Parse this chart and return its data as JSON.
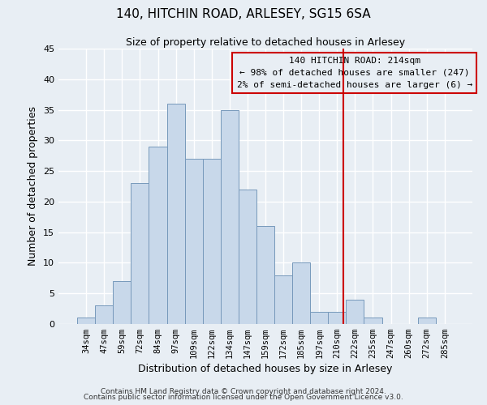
{
  "title": "140, HITCHIN ROAD, ARLESEY, SG15 6SA",
  "subtitle": "Size of property relative to detached houses in Arlesey",
  "xlabel": "Distribution of detached houses by size in Arlesey",
  "ylabel": "Number of detached properties",
  "bar_labels": [
    "34sqm",
    "47sqm",
    "59sqm",
    "72sqm",
    "84sqm",
    "97sqm",
    "109sqm",
    "122sqm",
    "134sqm",
    "147sqm",
    "159sqm",
    "172sqm",
    "185sqm",
    "197sqm",
    "210sqm",
    "222sqm",
    "235sqm",
    "247sqm",
    "260sqm",
    "272sqm",
    "285sqm"
  ],
  "bar_values": [
    1,
    3,
    7,
    23,
    29,
    36,
    27,
    27,
    35,
    22,
    16,
    8,
    10,
    2,
    2,
    4,
    1,
    0,
    0,
    1,
    0
  ],
  "bar_color": "#c8d8ea",
  "bar_edgecolor": "#7799bb",
  "ylim": [
    0,
    45
  ],
  "yticks": [
    0,
    5,
    10,
    15,
    20,
    25,
    30,
    35,
    40,
    45
  ],
  "vline_color": "#cc0000",
  "annotation_title": "140 HITCHIN ROAD: 214sqm",
  "annotation_line1": "← 98% of detached houses are smaller (247)",
  "annotation_line2": "2% of semi-detached houses are larger (6) →",
  "annotation_box_color": "#cc0000",
  "footer_line1": "Contains HM Land Registry data © Crown copyright and database right 2024.",
  "footer_line2": "Contains public sector information licensed under the Open Government Licence v3.0.",
  "background_color": "#e8eef4",
  "grid_color": "#ffffff"
}
